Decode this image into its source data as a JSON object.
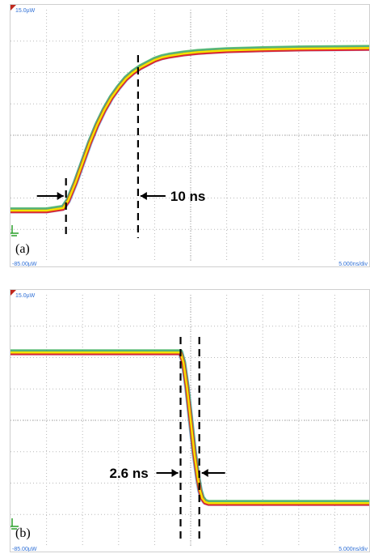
{
  "chart_data": [
    {
      "type": "line",
      "panel_label": "(a)",
      "scale_top": "15.0µW",
      "scale_bottom": "-85.00µW",
      "time_base": "5.000ns/div",
      "annotation": "10 ns",
      "ylim": [
        -85,
        15
      ],
      "xlim": [
        0,
        50
      ],
      "x_units": "ns",
      "y_units": "µW",
      "grid": true,
      "series": [
        {
          "x": [
            0,
            5,
            7.3,
            8,
            9,
            10,
            11,
            12,
            13,
            14,
            15,
            16,
            17,
            18,
            19,
            20,
            21,
            22,
            24,
            26,
            28,
            30,
            35,
            40,
            45,
            50
          ],
          "values": [
            -65,
            -65,
            -64,
            -61,
            -54,
            -46,
            -38,
            -31,
            -25,
            -20,
            -16,
            -12.5,
            -10,
            -8,
            -6.5,
            -5,
            -4,
            -3.4,
            -2.5,
            -1.9,
            -1.5,
            -1.2,
            -0.8,
            -0.5,
            -0.4,
            -0.3
          ]
        }
      ],
      "markers_ns": [
        7.7,
        17.7
      ]
    },
    {
      "type": "line",
      "panel_label": "(b)",
      "scale_top": "15.0µW",
      "scale_bottom": "-85.00µW",
      "time_base": "5.000ns/div",
      "annotation": "2.6 ns",
      "ylim": [
        -85,
        15
      ],
      "xlim": [
        0,
        50
      ],
      "x_units": "ns",
      "y_units": "µW",
      "grid": true,
      "series": [
        {
          "x": [
            0,
            10,
            20,
            23.6,
            24,
            24.5,
            25,
            25.5,
            26,
            26.3,
            26.6,
            27,
            27.5,
            28,
            30,
            35,
            40,
            45,
            50
          ],
          "values": [
            -8,
            -8,
            -8,
            -8,
            -12,
            -22,
            -35,
            -48,
            -58,
            -63,
            -66,
            -67.5,
            -68,
            -68,
            -68,
            -68,
            -68,
            -68,
            -68
          ]
        }
      ],
      "markers_ns": [
        23.6,
        26.2
      ]
    }
  ],
  "colors": {
    "grid": "#b9b9b9",
    "scale_text": "#2e6fd6",
    "trace_core": "#f2e400",
    "trace_red": "#e0202a",
    "trace_green": "#39b54a",
    "trace_blue": "#3a6fd8",
    "ground_marker": "#2aa02a",
    "marker_line": "#000000"
  }
}
